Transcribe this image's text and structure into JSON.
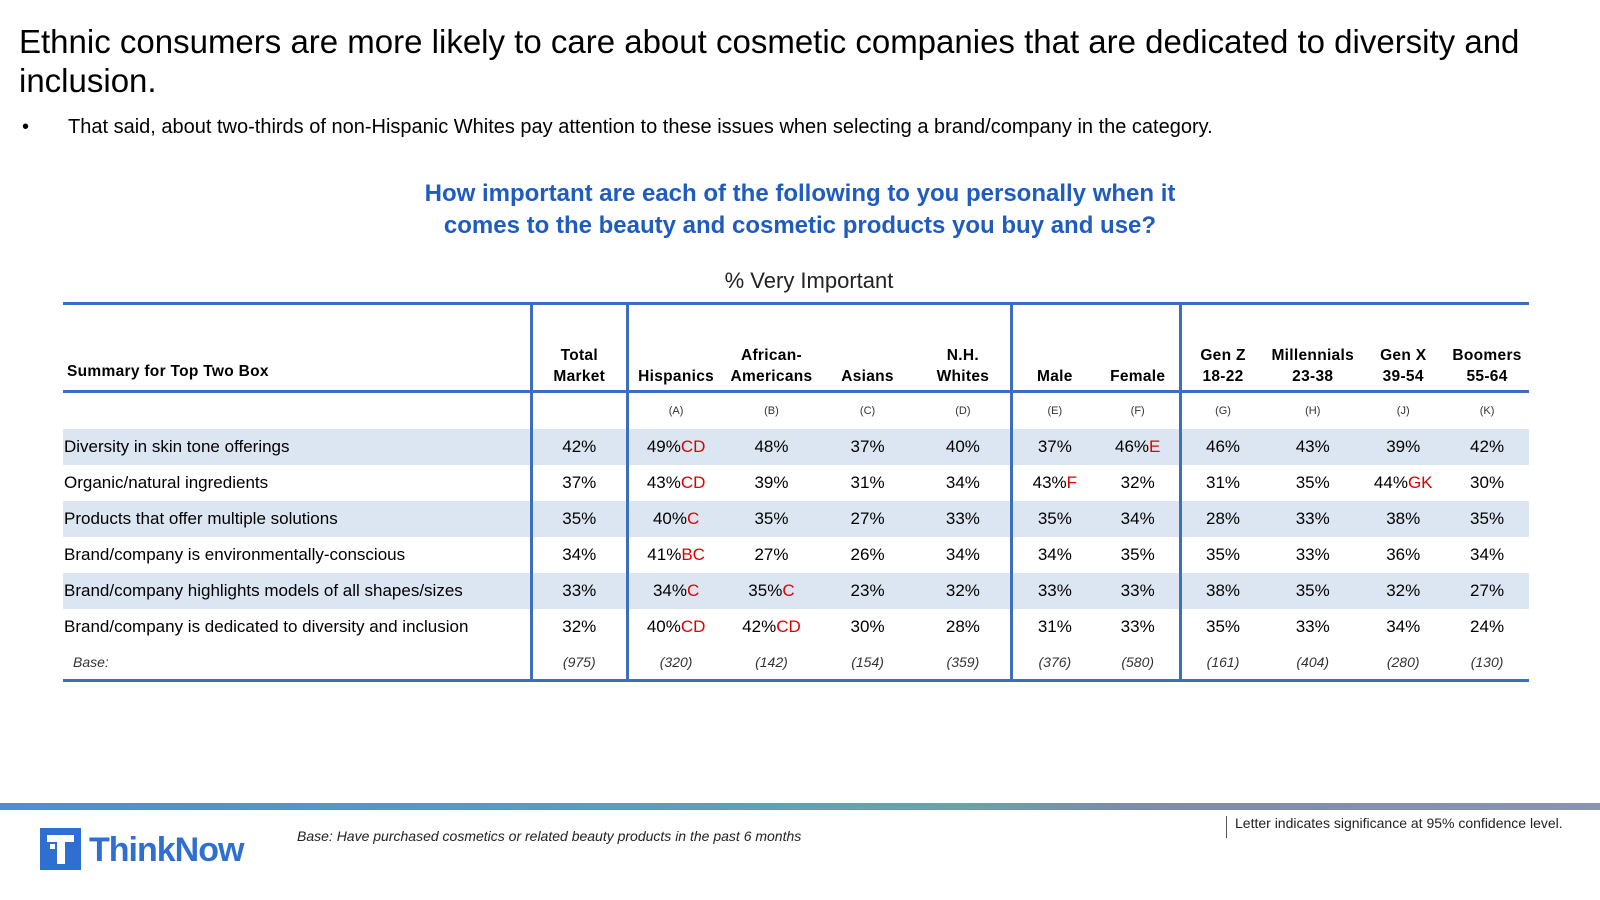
{
  "title": "Ethnic consumers are more likely to care about cosmetic companies that are dedicated to diversity and inclusion.",
  "bullet": {
    "symbol": "•",
    "text": "That said, about two-thirds of non-Hispanic Whites pay attention to these issues when selecting a brand/company in the category."
  },
  "question": {
    "line1": "How important are each of the following to you personally when it",
    "line2": "comes to the beauty and cosmetic products you buy and use?"
  },
  "subtitle": "% Very Important",
  "table": {
    "summary_header": "Summary for Top Two Box",
    "columns": [
      {
        "l1": "Total",
        "l2": "Market",
        "letter": ""
      },
      {
        "l1": "",
        "l2": "Hispanics",
        "letter": "(A)"
      },
      {
        "l1": "African-",
        "l2": "Americans",
        "letter": "(B)"
      },
      {
        "l1": "",
        "l2": "Asians",
        "letter": "(C)"
      },
      {
        "l1": "N.H.",
        "l2": "Whites",
        "letter": "(D)"
      },
      {
        "l1": "",
        "l2": "Male",
        "letter": "(E)"
      },
      {
        "l1": "",
        "l2": "Female",
        "letter": "(F)"
      },
      {
        "l1": "Gen Z",
        "l2": "18-22",
        "letter": "(G)"
      },
      {
        "l1": "Millennials",
        "l2": "23-38",
        "letter": "(H)"
      },
      {
        "l1": "Gen X",
        "l2": "39-54",
        "letter": "(J)"
      },
      {
        "l1": "Boomers",
        "l2": "55-64",
        "letter": "(K)"
      }
    ],
    "rows": [
      {
        "label": "Diversity in skin tone offerings",
        "cells": [
          {
            "v": "42%",
            "s": ""
          },
          {
            "v": "49%",
            "s": "CD"
          },
          {
            "v": "48%",
            "s": ""
          },
          {
            "v": "37%",
            "s": ""
          },
          {
            "v": "40%",
            "s": ""
          },
          {
            "v": "37%",
            "s": ""
          },
          {
            "v": "46%",
            "s": "E"
          },
          {
            "v": "46%",
            "s": ""
          },
          {
            "v": "43%",
            "s": ""
          },
          {
            "v": "39%",
            "s": ""
          },
          {
            "v": "42%",
            "s": ""
          }
        ]
      },
      {
        "label": "Organic/natural ingredients",
        "cells": [
          {
            "v": "37%",
            "s": ""
          },
          {
            "v": "43%",
            "s": "CD"
          },
          {
            "v": "39%",
            "s": ""
          },
          {
            "v": "31%",
            "s": ""
          },
          {
            "v": "34%",
            "s": ""
          },
          {
            "v": "43%",
            "s": "F"
          },
          {
            "v": "32%",
            "s": ""
          },
          {
            "v": "31%",
            "s": ""
          },
          {
            "v": "35%",
            "s": ""
          },
          {
            "v": "44%",
            "s": "GK"
          },
          {
            "v": "30%",
            "s": ""
          }
        ]
      },
      {
        "label": "Products that offer multiple solutions",
        "cells": [
          {
            "v": "35%",
            "s": ""
          },
          {
            "v": "40%",
            "s": "C"
          },
          {
            "v": "35%",
            "s": ""
          },
          {
            "v": "27%",
            "s": ""
          },
          {
            "v": "33%",
            "s": ""
          },
          {
            "v": "35%",
            "s": ""
          },
          {
            "v": "34%",
            "s": ""
          },
          {
            "v": "28%",
            "s": ""
          },
          {
            "v": "33%",
            "s": ""
          },
          {
            "v": "38%",
            "s": ""
          },
          {
            "v": "35%",
            "s": ""
          }
        ]
      },
      {
        "label": "Brand/company is environmentally-conscious",
        "cells": [
          {
            "v": "34%",
            "s": ""
          },
          {
            "v": "41%",
            "s": "BC"
          },
          {
            "v": "27%",
            "s": ""
          },
          {
            "v": "26%",
            "s": ""
          },
          {
            "v": "34%",
            "s": ""
          },
          {
            "v": "34%",
            "s": ""
          },
          {
            "v": "35%",
            "s": ""
          },
          {
            "v": "35%",
            "s": ""
          },
          {
            "v": "33%",
            "s": ""
          },
          {
            "v": "36%",
            "s": ""
          },
          {
            "v": "34%",
            "s": ""
          }
        ]
      },
      {
        "label": "Brand/company highlights models of all shapes/sizes",
        "cells": [
          {
            "v": "33%",
            "s": ""
          },
          {
            "v": "34%",
            "s": "C"
          },
          {
            "v": "35%",
            "s": "C"
          },
          {
            "v": "23%",
            "s": ""
          },
          {
            "v": "32%",
            "s": ""
          },
          {
            "v": "33%",
            "s": ""
          },
          {
            "v": "33%",
            "s": ""
          },
          {
            "v": "38%",
            "s": ""
          },
          {
            "v": "35%",
            "s": ""
          },
          {
            "v": "32%",
            "s": ""
          },
          {
            "v": "27%",
            "s": ""
          }
        ]
      },
      {
        "label": "Brand/company is dedicated to diversity and inclusion",
        "cells": [
          {
            "v": "32%",
            "s": ""
          },
          {
            "v": "40%",
            "s": "CD"
          },
          {
            "v": "42%",
            "s": "CD"
          },
          {
            "v": "30%",
            "s": ""
          },
          {
            "v": "28%",
            "s": ""
          },
          {
            "v": "31%",
            "s": ""
          },
          {
            "v": "33%",
            "s": ""
          },
          {
            "v": "35%",
            "s": ""
          },
          {
            "v": "33%",
            "s": ""
          },
          {
            "v": "34%",
            "s": ""
          },
          {
            "v": "24%",
            "s": ""
          }
        ]
      }
    ],
    "base_label": "Base:",
    "base_values": [
      "(975)",
      "(320)",
      "(142)",
      "(154)",
      "(359)",
      "(376)",
      "(580)",
      "(161)",
      "(404)",
      "(280)",
      "(130)"
    ]
  },
  "footer": {
    "logo_text": "ThinkNow",
    "base_note": "Base: Have purchased cosmetics or related beauty products in the past 6 months",
    "sig_note": "Letter indicates significance at 95% confidence level."
  },
  "colors": {
    "question": "#1f5cc0",
    "rule": "#3a6fbf",
    "row_shade": "#dce6f2",
    "significance": "#e00000",
    "brand": "#2f6fd1"
  }
}
